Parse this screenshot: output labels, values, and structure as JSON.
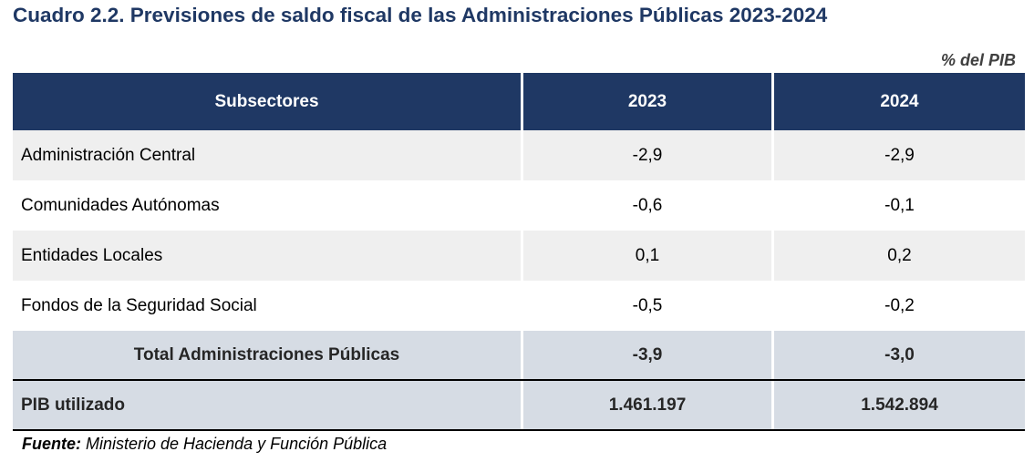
{
  "title": "Cuadro 2.2. Previsiones de saldo fiscal de las Administraciones Públicas 2023-2024",
  "units": "% del PIB",
  "table": {
    "headers": [
      "Subsectores",
      "2023",
      "2024"
    ],
    "rows": [
      {
        "label": "Administración Central",
        "v2023": "-2,9",
        "v2024": "-2,9"
      },
      {
        "label": "Comunidades Autónomas",
        "v2023": "-0,6",
        "v2024": "-0,1"
      },
      {
        "label": "Entidades Locales",
        "v2023": "0,1",
        "v2024": "0,2"
      },
      {
        "label": "Fondos de la Seguridad Social",
        "v2023": "-0,5",
        "v2024": "-0,2"
      }
    ],
    "total": {
      "label": "Total Administraciones Públicas",
      "v2023": "-3,9",
      "v2024": "-3,0"
    },
    "pib": {
      "label": "PIB utilizado",
      "v2023": "1.461.197",
      "v2024": "1.542.894"
    }
  },
  "source": {
    "label": "Fuente:",
    "text": " Ministerio de Hacienda y Función Pública"
  },
  "colors": {
    "header_bg": "#1f3864",
    "title": "#1f3864",
    "total_bg": "#d6dce4",
    "shade_bg": "#efefef"
  }
}
